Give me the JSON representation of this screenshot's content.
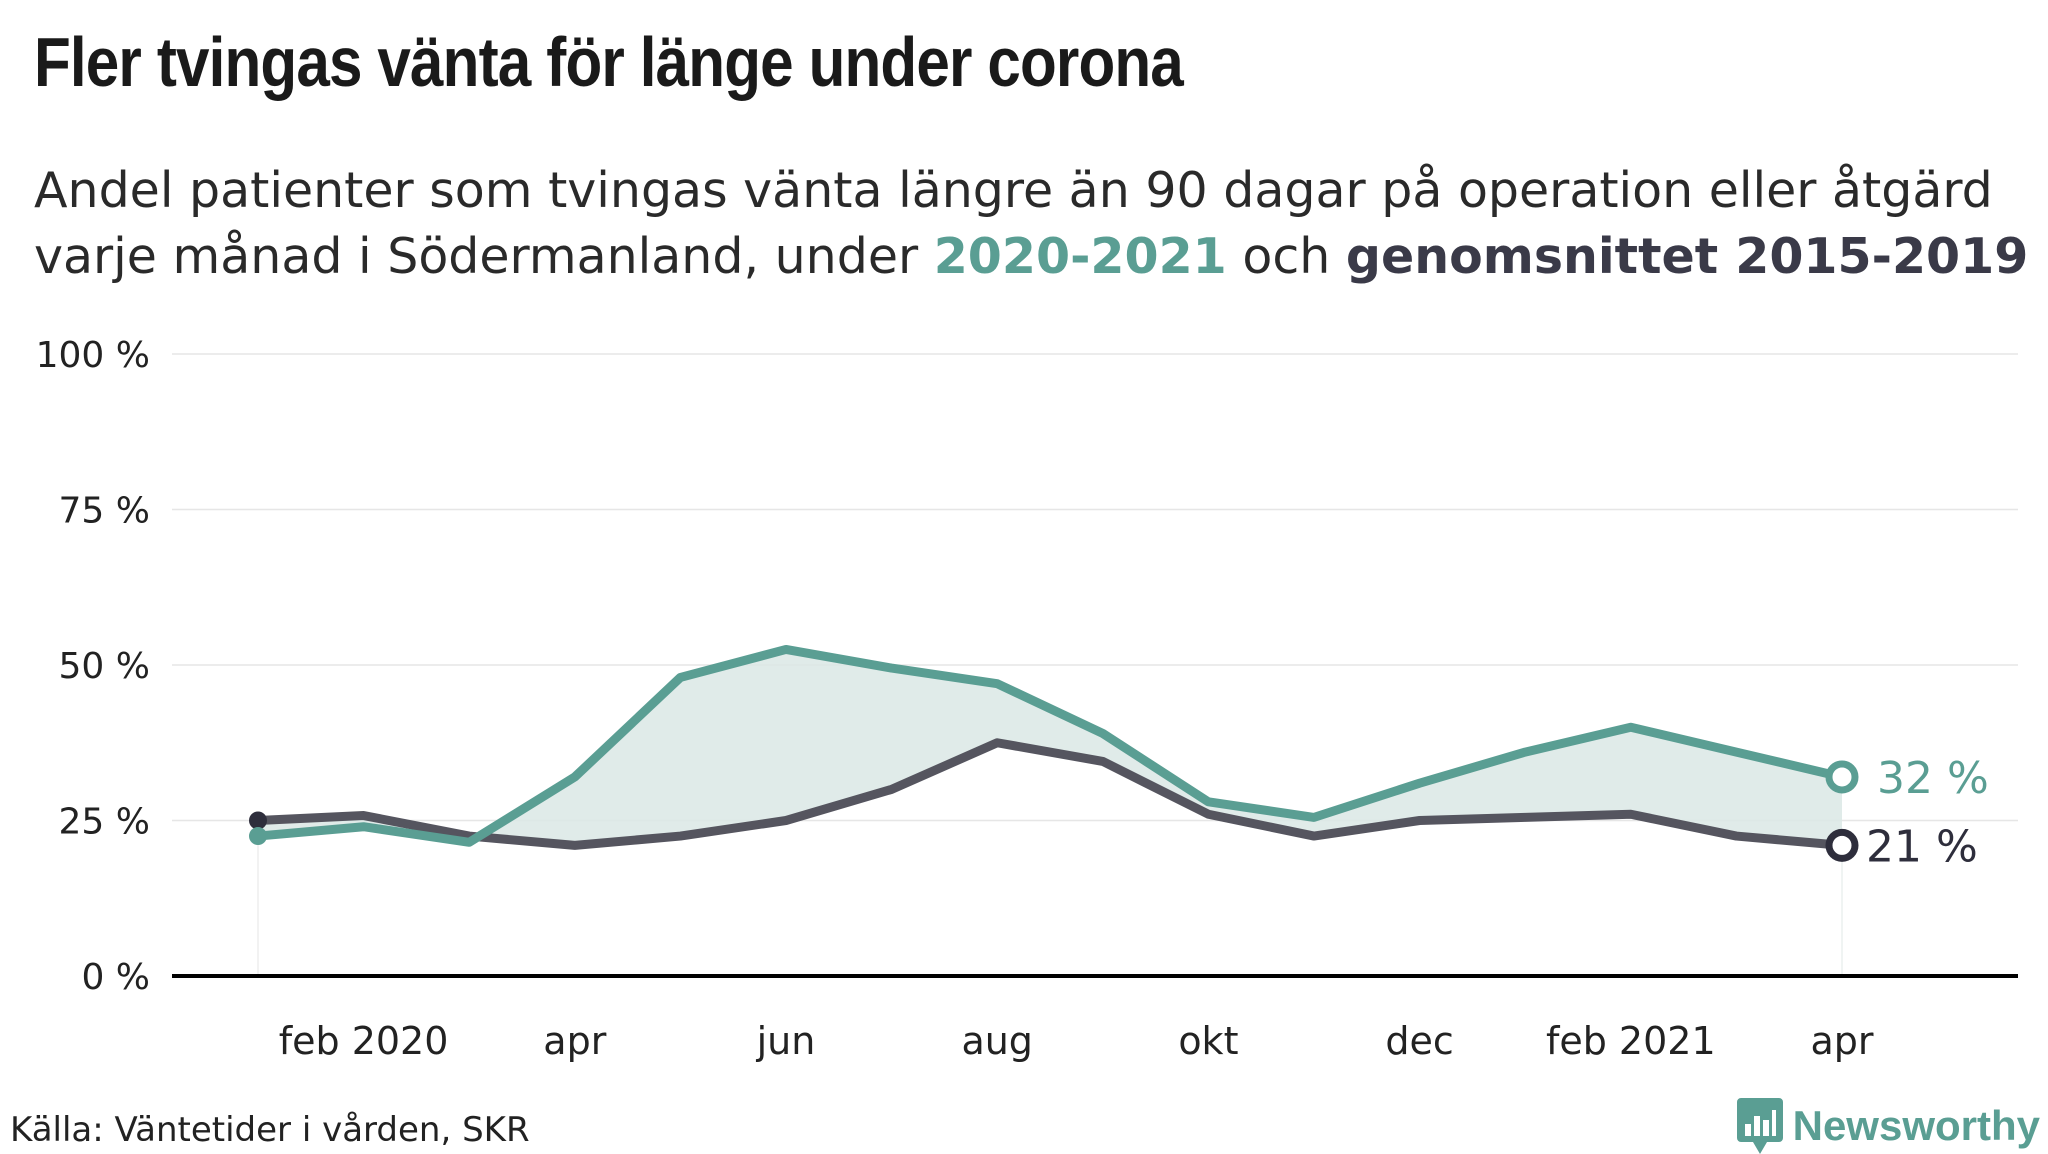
{
  "header": {
    "title": "Fler tvingas vänta för länge under corona",
    "subtitle_part1": "Andel patienter som tvingas vänta längre än 90 dagar på operation eller åtgärd",
    "subtitle_part2": "varje månad i Södermanland, under ",
    "subtitle_highlight1": "2020-2021",
    "subtitle_part3": " och ",
    "subtitle_highlight2": "genomsnittet 2015-2019"
  },
  "footer": {
    "source": "Källa: Väntetider i vården, SKR",
    "brand": "Newsworthy"
  },
  "colors": {
    "current": "#5a9e93",
    "average": "#55555f",
    "average_marker": "#2e2e3c",
    "fill": "#dae8e5",
    "grid": "#e6e6e6",
    "axis": "#000000"
  },
  "chart_data": {
    "type": "line",
    "months": [
      "jan",
      "feb",
      "mar",
      "apr",
      "maj",
      "jun",
      "jul",
      "aug",
      "sep",
      "okt",
      "nov",
      "dec",
      "jan",
      "feb",
      "mar",
      "apr"
    ],
    "x_tick_labels": [
      {
        "index": 1,
        "label": "feb 2020"
      },
      {
        "index": 3,
        "label": "apr"
      },
      {
        "index": 5,
        "label": "jun"
      },
      {
        "index": 7,
        "label": "aug"
      },
      {
        "index": 9,
        "label": "okt"
      },
      {
        "index": 11,
        "label": "dec"
      },
      {
        "index": 13,
        "label": "feb 2021"
      },
      {
        "index": 15,
        "label": "apr"
      }
    ],
    "y_ticks": [
      0,
      25,
      50,
      75,
      100
    ],
    "y_tick_labels": [
      "0 %",
      "25 %",
      "50 %",
      "75 %",
      "100 %"
    ],
    "ylim": [
      0,
      100
    ],
    "grid": true,
    "series": [
      {
        "key": "current",
        "values": [
          22.5,
          24,
          21.5,
          32,
          48,
          52.5,
          49.5,
          47,
          39,
          28,
          25.5,
          31,
          36,
          40,
          36,
          32
        ],
        "end_label": "32 %"
      },
      {
        "key": "average",
        "values": [
          25,
          25.8,
          22.5,
          21,
          22.5,
          25,
          30,
          37.5,
          34.5,
          26,
          22.5,
          25,
          25.5,
          26,
          22.5,
          21
        ],
        "end_label": "21 %"
      }
    ]
  }
}
